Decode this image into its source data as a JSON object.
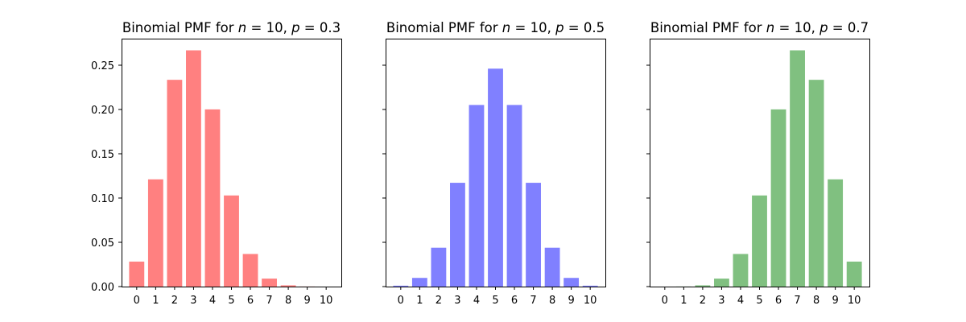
{
  "chart_data": [
    {
      "type": "bar",
      "title": {
        "prefix": "Binomial PMF for ",
        "n_sym": "n",
        "n_eq": " = 10, ",
        "p_sym": "p",
        "p_eq": " = 0.3"
      },
      "categories": [
        "0",
        "1",
        "2",
        "3",
        "4",
        "5",
        "6",
        "7",
        "8",
        "9",
        "10"
      ],
      "values": [
        0.0282,
        0.1211,
        0.2335,
        0.2668,
        0.2001,
        0.1029,
        0.0368,
        0.009,
        0.0014,
        0.0001,
        0.0
      ],
      "color": "#ff8080",
      "ylim": [
        0,
        0.28
      ],
      "yticks": [
        0.0,
        0.05,
        0.1,
        0.15,
        0.2,
        0.25
      ],
      "ytick_labels": [
        "0.00",
        "0.05",
        "0.10",
        "0.15",
        "0.20",
        "0.25"
      ],
      "show_ytick_labels": true,
      "grid": false
    },
    {
      "type": "bar",
      "title": {
        "prefix": "Binomial PMF for ",
        "n_sym": "n",
        "n_eq": " = 10, ",
        "p_sym": "p",
        "p_eq": " = 0.5"
      },
      "categories": [
        "0",
        "1",
        "2",
        "3",
        "4",
        "5",
        "6",
        "7",
        "8",
        "9",
        "10"
      ],
      "values": [
        0.001,
        0.0098,
        0.0439,
        0.1172,
        0.2051,
        0.2461,
        0.2051,
        0.1172,
        0.0439,
        0.0098,
        0.001
      ],
      "color": "#8080ff",
      "ylim": [
        0,
        0.28
      ],
      "yticks": [
        0.0,
        0.05,
        0.1,
        0.15,
        0.2,
        0.25
      ],
      "show_ytick_labels": false,
      "grid": false
    },
    {
      "type": "bar",
      "title": {
        "prefix": "Binomial PMF for ",
        "n_sym": "n",
        "n_eq": " = 10, ",
        "p_sym": "p",
        "p_eq": " = 0.7"
      },
      "categories": [
        "0",
        "1",
        "2",
        "3",
        "4",
        "5",
        "6",
        "7",
        "8",
        "9",
        "10"
      ],
      "values": [
        0.0,
        0.0001,
        0.0014,
        0.009,
        0.0368,
        0.1029,
        0.2001,
        0.2668,
        0.2335,
        0.1211,
        0.0282
      ],
      "color": "#80c080",
      "ylim": [
        0,
        0.28
      ],
      "yticks": [
        0.0,
        0.05,
        0.1,
        0.15,
        0.2,
        0.25
      ],
      "show_ytick_labels": false,
      "grid": false
    }
  ]
}
